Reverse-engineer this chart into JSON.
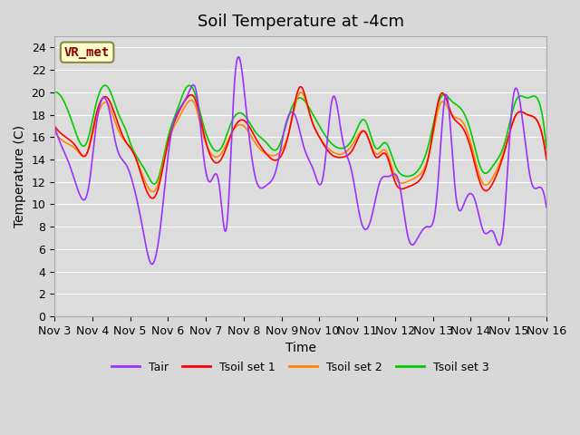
{
  "title": "Soil Temperature at -4cm",
  "xlabel": "Time",
  "ylabel": "Temperature (C)",
  "ylim": [
    0,
    25
  ],
  "yticks": [
    0,
    2,
    4,
    6,
    8,
    10,
    12,
    14,
    16,
    18,
    20,
    22,
    24
  ],
  "xtick_labels": [
    "Nov 3",
    "Nov 4",
    "Nov 5",
    "Nov 6",
    "Nov 7",
    "Nov 8",
    "Nov 9",
    "Nov 10",
    "Nov 11",
    "Nov 12",
    "Nov 13",
    "Nov 14",
    "Nov 15",
    "Nov 16"
  ],
  "colors": {
    "Tair": "#9b30ff",
    "Tsoil1": "#ff0000",
    "Tsoil2": "#ff8800",
    "Tsoil3": "#00cc00"
  },
  "legend_labels": [
    "Tair",
    "Tsoil set 1",
    "Tsoil set 2",
    "Tsoil set 3"
  ],
  "bg_color": "#d8d8d8",
  "plot_bg_color": "#dcdcdc",
  "annotation_text": "VR_met",
  "annotation_color": "#8b0000",
  "annotation_bg": "#ffffcc",
  "title_fontsize": 13,
  "axis_fontsize": 10,
  "tick_fontsize": 9,
  "tair_x": [
    0.0,
    0.15,
    0.4,
    0.65,
    0.9,
    1.1,
    1.4,
    1.65,
    1.9,
    2.1,
    2.35,
    2.55,
    2.8,
    3.05,
    3.3,
    3.55,
    3.75,
    3.95,
    4.1,
    4.35,
    4.55,
    4.75,
    5.05,
    5.3,
    5.6,
    5.85,
    6.1,
    6.35,
    6.6,
    6.85,
    7.1,
    7.35,
    7.6,
    7.85,
    8.1,
    8.35,
    8.6,
    8.85,
    9.1,
    9.35,
    9.6,
    9.85,
    10.1,
    10.35,
    10.6,
    10.85,
    11.1,
    11.35,
    11.6,
    11.85,
    12.1,
    12.35,
    12.6,
    12.85,
    13.0
  ],
  "tair_y": [
    17.0,
    15.5,
    13.5,
    11.0,
    11.5,
    17.0,
    19.0,
    15.0,
    13.5,
    11.5,
    7.5,
    4.7,
    8.0,
    15.6,
    18.5,
    20.0,
    20.0,
    14.0,
    12.0,
    11.8,
    8.0,
    20.5,
    19.0,
    12.5,
    11.7,
    13.0,
    17.0,
    18.0,
    15.0,
    13.0,
    12.5,
    19.5,
    16.0,
    13.0,
    8.5,
    8.5,
    12.0,
    12.5,
    12.0,
    7.0,
    7.0,
    8.0,
    10.5,
    19.8,
    11.0,
    10.3,
    10.5,
    7.5,
    7.5,
    7.5,
    19.0,
    18.0,
    12.0,
    11.5,
    9.7
  ],
  "ts1_x": [
    0.0,
    0.3,
    0.6,
    0.85,
    1.1,
    1.4,
    1.7,
    1.9,
    2.1,
    2.4,
    2.7,
    3.0,
    3.25,
    3.5,
    3.7,
    3.9,
    4.1,
    4.4,
    4.7,
    5.0,
    5.3,
    5.6,
    5.9,
    6.2,
    6.5,
    6.75,
    7.0,
    7.3,
    7.6,
    7.9,
    8.2,
    8.5,
    8.75,
    9.0,
    9.3,
    9.6,
    9.9,
    10.2,
    10.5,
    10.75,
    11.0,
    11.3,
    11.6,
    11.9,
    12.2,
    12.5,
    12.75,
    13.0
  ],
  "ts1_y": [
    17.0,
    16.0,
    15.0,
    14.5,
    18.0,
    19.5,
    17.0,
    15.5,
    14.5,
    11.5,
    11.0,
    15.5,
    18.0,
    19.5,
    19.5,
    17.0,
    14.5,
    14.0,
    16.5,
    17.5,
    16.0,
    14.5,
    14.0,
    16.5,
    20.5,
    18.0,
    16.0,
    14.5,
    14.2,
    15.0,
    16.5,
    14.2,
    14.5,
    12.0,
    11.5,
    12.0,
    14.5,
    19.8,
    18.0,
    17.0,
    15.0,
    11.5,
    12.0,
    14.8,
    18.0,
    18.0,
    17.5,
    14.0
  ],
  "ts2_x": [
    0.0,
    0.3,
    0.6,
    0.85,
    1.1,
    1.4,
    1.7,
    1.9,
    2.1,
    2.4,
    2.7,
    3.0,
    3.25,
    3.5,
    3.7,
    3.9,
    4.1,
    4.4,
    4.7,
    5.0,
    5.3,
    5.6,
    5.9,
    6.2,
    6.5,
    6.75,
    7.0,
    7.3,
    7.6,
    7.9,
    8.2,
    8.5,
    8.75,
    9.0,
    9.3,
    9.6,
    9.9,
    10.2,
    10.5,
    10.75,
    11.0,
    11.3,
    11.6,
    11.9,
    12.2,
    12.5,
    12.75,
    13.0
  ],
  "ts2_y": [
    16.5,
    15.5,
    14.8,
    14.5,
    17.5,
    19.0,
    16.5,
    15.5,
    14.5,
    12.0,
    11.5,
    15.5,
    17.5,
    19.0,
    19.0,
    16.5,
    14.7,
    14.5,
    16.5,
    17.0,
    15.5,
    14.5,
    14.5,
    16.5,
    20.0,
    18.0,
    16.0,
    14.8,
    14.5,
    15.5,
    16.5,
    14.5,
    14.8,
    12.5,
    12.0,
    12.5,
    14.5,
    19.0,
    18.0,
    17.5,
    15.5,
    12.0,
    12.5,
    15.0,
    18.0,
    18.0,
    17.5,
    14.2
  ],
  "ts3_x": [
    0.0,
    0.2,
    0.5,
    0.85,
    1.1,
    1.4,
    1.7,
    1.9,
    2.0,
    2.4,
    2.7,
    3.0,
    3.25,
    3.5,
    3.7,
    3.9,
    4.1,
    4.4,
    4.7,
    5.0,
    5.3,
    5.6,
    5.9,
    6.2,
    6.5,
    6.75,
    7.0,
    7.3,
    7.6,
    7.9,
    8.2,
    8.5,
    8.75,
    9.0,
    9.3,
    9.6,
    9.9,
    10.2,
    10.5,
    10.75,
    11.0,
    11.3,
    11.6,
    11.9,
    12.2,
    12.5,
    12.75,
    13.0
  ],
  "ts3_y": [
    20.0,
    19.5,
    17.0,
    15.5,
    19.0,
    20.5,
    18.0,
    16.5,
    15.5,
    13.0,
    12.0,
    16.0,
    18.5,
    20.5,
    20.0,
    17.5,
    15.5,
    15.0,
    17.5,
    18.0,
    16.5,
    15.5,
    15.0,
    18.0,
    19.5,
    18.5,
    17.0,
    15.5,
    15.0,
    16.0,
    17.5,
    15.0,
    15.5,
    13.5,
    12.5,
    13.0,
    15.5,
    19.5,
    19.2,
    18.5,
    16.5,
    13.0,
    13.5,
    15.5,
    19.3,
    19.5,
    19.5,
    15.0
  ]
}
